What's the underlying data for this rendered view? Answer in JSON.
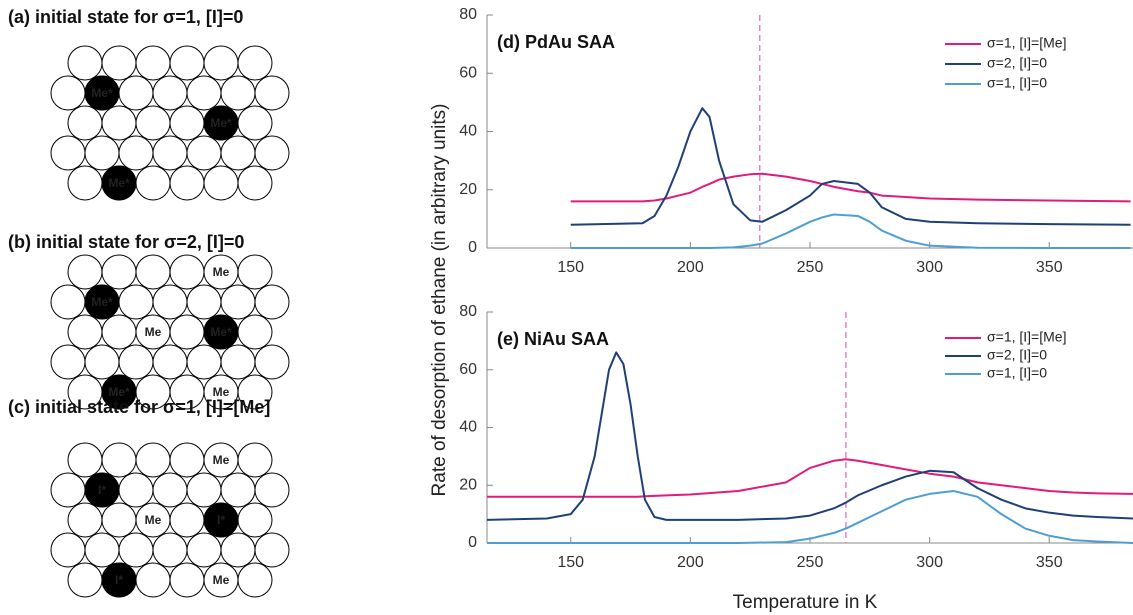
{
  "panels": [
    {
      "title": "(a) initial state for  σ=1, [I]=0",
      "atoms": [
        {
          "label": "Me*",
          "filled": true
        },
        {
          "label": "Me*",
          "filled": true
        },
        {
          "label": "Me*",
          "filled": true
        }
      ]
    },
    {
      "title": "(b) initial state for  σ=2, [I]=0",
      "atoms": [
        {
          "label": "Me",
          "filled": false
        },
        {
          "label": "Me*",
          "filled": true
        },
        {
          "label": "Me",
          "filled": false
        },
        {
          "label": "Me*",
          "filled": true
        },
        {
          "label": "Me*",
          "filled": true
        },
        {
          "label": "Me",
          "filled": false
        }
      ]
    },
    {
      "title": "(c) initial state for  σ=1, [I]=[Me]",
      "atoms": [
        {
          "label": "Me",
          "filled": false
        },
        {
          "label": "I*",
          "filled": true
        },
        {
          "label": "Me",
          "filled": false
        },
        {
          "label": "I*",
          "filled": true
        },
        {
          "label": "I*",
          "filled": true
        },
        {
          "label": "Me",
          "filled": false
        }
      ]
    }
  ],
  "y_label": "Rate of desorption of ethane (in arbitrary units)",
  "x_label": "Temperature in K",
  "chart_data": [
    {
      "type": "line",
      "title": "(d) PdAu SAA",
      "x": [
        150,
        180,
        185,
        190,
        195,
        200,
        205,
        208,
        212,
        218,
        225,
        230,
        240,
        250,
        255,
        260,
        270,
        275,
        280,
        290,
        300,
        320,
        350,
        384
      ],
      "series": [
        {
          "name": "σ=1, [I]=[Me]",
          "color": "#e3197c",
          "values": [
            16,
            16,
            16.3,
            17,
            18,
            19,
            21,
            22,
            23.5,
            24.5,
            25.3,
            25.5,
            24.5,
            23,
            22,
            21,
            19.5,
            19,
            18,
            17.5,
            17,
            16.6,
            16.3,
            16
          ]
        },
        {
          "name": "σ=2, [I]=0",
          "color": "#1f3f78",
          "values": [
            8,
            8.5,
            11,
            18,
            28,
            40,
            48,
            45,
            30,
            15,
            9.5,
            9,
            13,
            18,
            22,
            23,
            22,
            19,
            14,
            10,
            9,
            8.5,
            8.2,
            8
          ]
        },
        {
          "name": "σ=1, [I]=0",
          "color": "#4d9fd3",
          "values": [
            0,
            0,
            0,
            0,
            0,
            0,
            0,
            0,
            0.1,
            0.2,
            0.8,
            1.5,
            5,
            9,
            10.5,
            11.5,
            11,
            9,
            6,
            2.5,
            0.8,
            0.1,
            0,
            0
          ]
        }
      ],
      "vline": 229,
      "vline_color": "#e36fc4",
      "xlim": [
        115,
        385
      ],
      "ylim": [
        0,
        80
      ],
      "xticks": [
        150,
        200,
        250,
        300,
        350
      ],
      "yticks": [
        0,
        20,
        40,
        60,
        80
      ]
    },
    {
      "type": "line",
      "title": "(e) NiAu SAA",
      "x": [
        115,
        140,
        150,
        155,
        160,
        163,
        166,
        169,
        172,
        175,
        178,
        181,
        185,
        190,
        200,
        220,
        240,
        250,
        260,
        265,
        270,
        280,
        290,
        300,
        310,
        320,
        330,
        340,
        350,
        360,
        370,
        385
      ],
      "series": [
        {
          "name": "σ=1, [I]=[Me]",
          "color": "#e3197c",
          "values": [
            16,
            16,
            16,
            16,
            16,
            16,
            16,
            16,
            16,
            16,
            16,
            16.2,
            16.3,
            16.5,
            16.8,
            18,
            21,
            26,
            28.5,
            29,
            28.5,
            27,
            25.5,
            24,
            23,
            21,
            20,
            19,
            18,
            17.5,
            17.2,
            17
          ]
        },
        {
          "name": "σ=2, [I]=0",
          "color": "#1f3f78",
          "values": [
            8,
            8.5,
            10,
            15,
            30,
            45,
            60,
            66,
            62,
            48,
            30,
            15,
            9,
            8,
            8,
            8,
            8.5,
            9.5,
            12,
            14,
            16.5,
            20,
            23,
            25,
            24.5,
            19,
            15,
            12,
            10.5,
            9.5,
            9,
            8.5
          ]
        },
        {
          "name": "σ=1, [I]=0",
          "color": "#4d9fd3",
          "values": [
            0,
            0,
            0,
            0,
            0,
            0,
            0,
            0,
            0,
            0,
            0,
            0,
            0,
            0,
            0,
            0,
            0.3,
            1.5,
            3.5,
            5,
            7,
            11,
            15,
            17,
            18,
            16,
            10,
            5,
            2.5,
            1,
            0.5,
            0
          ]
        }
      ],
      "vline": 265,
      "vline_color": "#e36fc4",
      "xlim": [
        115,
        385
      ],
      "ylim": [
        0,
        80
      ],
      "xticks": [
        150,
        200,
        250,
        300,
        350
      ],
      "yticks": [
        0,
        20,
        40,
        60,
        80
      ]
    }
  ]
}
